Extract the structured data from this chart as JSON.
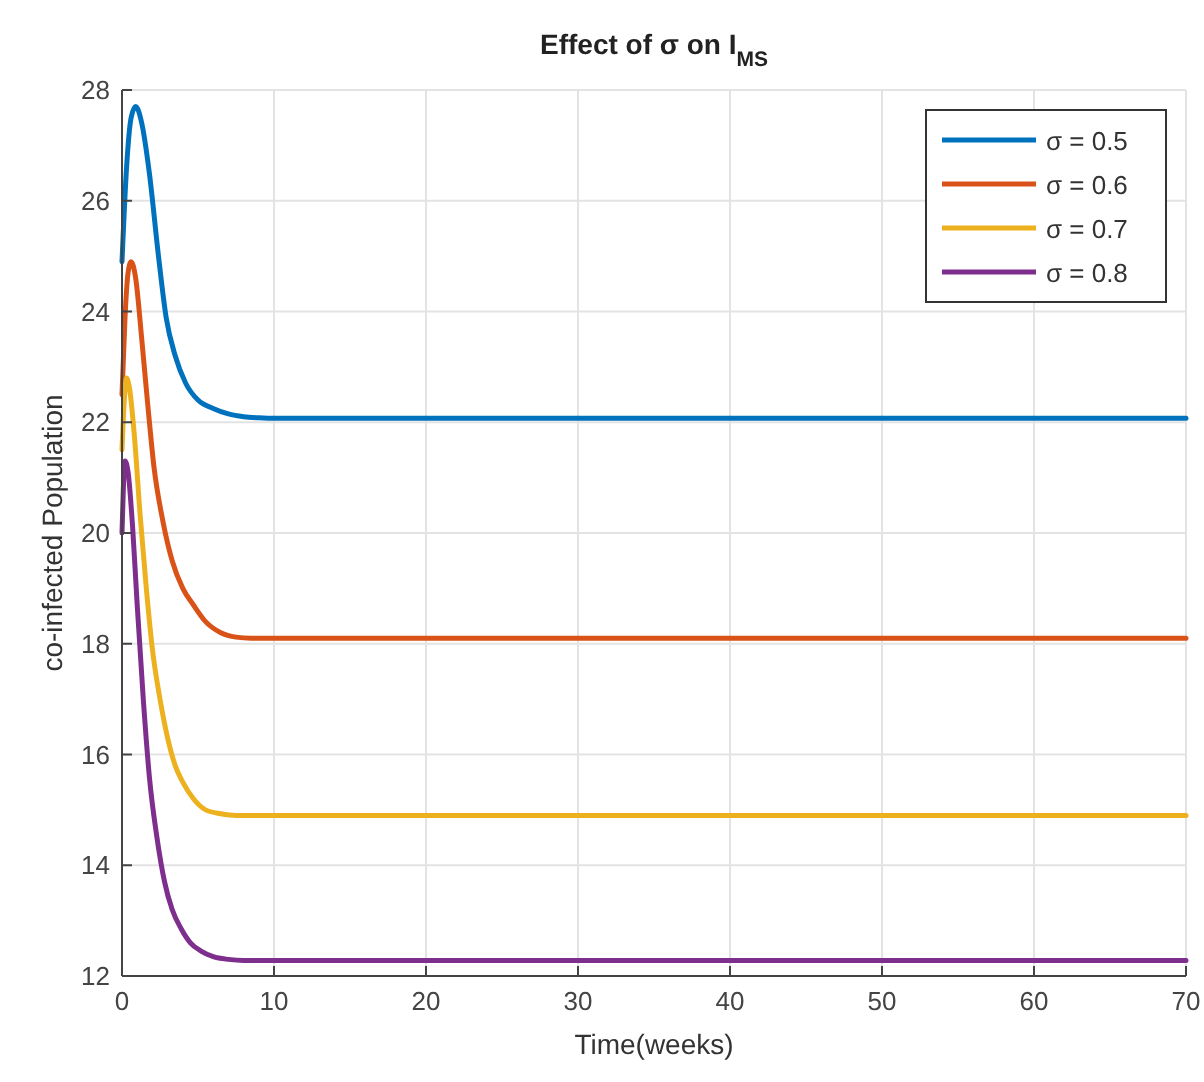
{
  "chart_data": {
    "type": "line",
    "title": "Effect of σ on I$_{MS}$",
    "xlabel": "Time(weeks)",
    "ylabel": "co-infected Population",
    "xlim": [
      0,
      70
    ],
    "ylim": [
      12,
      28
    ],
    "xticks": [
      0,
      10,
      20,
      30,
      40,
      50,
      60,
      70
    ],
    "yticks": [
      12,
      14,
      16,
      18,
      20,
      22,
      24,
      26,
      28
    ],
    "grid": true,
    "legend": "top right",
    "series": [
      {
        "name": "σ = 0.5",
        "color": "#0072bd",
        "x": [
          0,
          0.3,
          0.6,
          0.9,
          1.3,
          1.8,
          2.4,
          2.9,
          3.5,
          4.2,
          5,
          6,
          7,
          8,
          9,
          10,
          20,
          30,
          40,
          50,
          60,
          70
        ],
        "values": [
          24.9,
          26.6,
          27.5,
          27.7,
          27.4,
          26.5,
          25,
          23.9,
          23.2,
          22.7,
          22.4,
          22.25,
          22.15,
          22.1,
          22.08,
          22.07,
          22.07,
          22.07,
          22.07,
          22.07,
          22.07,
          22.07
        ]
      },
      {
        "name": "σ = 0.6",
        "color": "#d95319",
        "x": [
          0,
          0.2,
          0.4,
          0.6,
          0.9,
          1.3,
          1.7,
          2.1,
          2.7,
          3.3,
          4,
          4.7,
          5.5,
          6.5,
          7.5,
          8.5,
          10,
          20,
          30,
          40,
          50,
          60,
          70
        ],
        "values": [
          22.5,
          23.9,
          24.7,
          24.9,
          24.6,
          23.5,
          22.3,
          21.2,
          20.2,
          19.5,
          19,
          18.7,
          18.4,
          18.2,
          18.12,
          18.1,
          18.1,
          18.1,
          18.1,
          18.1,
          18.1,
          18.1,
          18.1
        ]
      },
      {
        "name": "σ = 0.7",
        "color": "#edb120",
        "x": [
          0,
          0.15,
          0.3,
          0.5,
          0.8,
          1.2,
          1.6,
          2,
          2.5,
          3,
          3.5,
          4,
          4.7,
          5.5,
          6.5,
          7.5,
          10,
          20,
          30,
          40,
          50,
          60,
          70
        ],
        "values": [
          21.5,
          22.4,
          22.8,
          22.6,
          21.8,
          20.3,
          19,
          17.9,
          17,
          16.3,
          15.8,
          15.5,
          15.2,
          15,
          14.93,
          14.9,
          14.9,
          14.9,
          14.9,
          14.9,
          14.9,
          14.9,
          14.9
        ]
      },
      {
        "name": "σ = 0.8",
        "color": "#7e2f8e",
        "x": [
          0,
          0.1,
          0.2,
          0.4,
          0.7,
          1,
          1.4,
          1.8,
          2.3,
          2.8,
          3.3,
          3.9,
          4.5,
          5.2,
          6,
          7,
          8,
          10,
          20,
          30,
          40,
          50,
          60,
          70
        ],
        "values": [
          20,
          20.9,
          21.3,
          21.1,
          20.1,
          18.7,
          17,
          15.6,
          14.5,
          13.7,
          13.2,
          12.85,
          12.6,
          12.45,
          12.35,
          12.3,
          12.28,
          12.28,
          12.28,
          12.28,
          12.28,
          12.28,
          12.28,
          12.28
        ]
      }
    ]
  }
}
